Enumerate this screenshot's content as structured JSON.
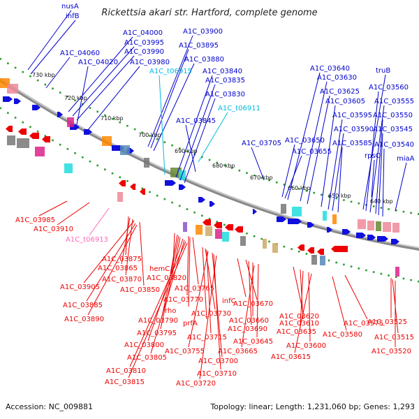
{
  "title": "Rickettsia akari str. Hartford, complete genome",
  "footer": {
    "accession": "Accession: NC_009881",
    "summary": "Topology: linear; Length: 1,231,060 bp; Genes: 1,293"
  },
  "colors": {
    "top_label": "#0000cc",
    "trna_label": "#00bbdd",
    "bottom_label": "#ee0000",
    "pink_label": "#ff66bb",
    "backbone": "#8a8a8a"
  },
  "scale_ticks": [
    "730 kbp",
    "720 kbp",
    "710 kbp",
    "700 kbp",
    "690 kbp",
    "680 kbp",
    "670 kbp",
    "660 kbp",
    "650 kbp",
    "640 kbp"
  ],
  "top_labels": [
    {
      "text": "nusA",
      "kind": "gene"
    },
    {
      "text": "infB",
      "kind": "gene"
    },
    {
      "text": "A1C_04060",
      "kind": "gene"
    },
    {
      "text": "A1C_04000",
      "kind": "gene"
    },
    {
      "text": "A1C_03995",
      "kind": "gene"
    },
    {
      "text": "A1C_03990",
      "kind": "gene"
    },
    {
      "text": "A1C_04020",
      "kind": "gene"
    },
    {
      "text": "A1C_03980",
      "kind": "gene"
    },
    {
      "text": "A1C_03900",
      "kind": "gene"
    },
    {
      "text": "A1C_03895",
      "kind": "gene"
    },
    {
      "text": "A1C_03880",
      "kind": "gene"
    },
    {
      "text": "A1C_t06915",
      "kind": "trna"
    },
    {
      "text": "A1C_03840",
      "kind": "gene"
    },
    {
      "text": "A1C_03835",
      "kind": "gene"
    },
    {
      "text": "A1C_03830",
      "kind": "gene"
    },
    {
      "text": "A1C_t06911",
      "kind": "trna"
    },
    {
      "text": "A1C_03845",
      "kind": "gene"
    },
    {
      "text": "A1C_03705",
      "kind": "gene"
    },
    {
      "text": "A1C_03650",
      "kind": "gene"
    },
    {
      "text": "A1C_03655",
      "kind": "gene"
    },
    {
      "text": "A1C_03640",
      "kind": "gene"
    },
    {
      "text": "A1C_03630",
      "kind": "gene"
    },
    {
      "text": "A1C_03625",
      "kind": "gene"
    },
    {
      "text": "A1C_03605",
      "kind": "gene"
    },
    {
      "text": "A1C_03595",
      "kind": "gene"
    },
    {
      "text": "A1C_03590",
      "kind": "gene"
    },
    {
      "text": "A1C_03585",
      "kind": "gene"
    },
    {
      "text": "truB",
      "kind": "gene"
    },
    {
      "text": "A1C_03560",
      "kind": "gene"
    },
    {
      "text": "A1C_03555",
      "kind": "gene"
    },
    {
      "text": "A1C_03550",
      "kind": "gene"
    },
    {
      "text": "A1C_03545",
      "kind": "gene"
    },
    {
      "text": "A1C_03540",
      "kind": "gene"
    },
    {
      "text": "rpsO",
      "kind": "gene"
    },
    {
      "text": "miaA",
      "kind": "gene"
    }
  ],
  "bottom_labels": [
    {
      "text": "A1C_03985",
      "kind": "gene"
    },
    {
      "text": "A1C_03910",
      "kind": "gene"
    },
    {
      "text": "A1C_t06913",
      "kind": "trna"
    },
    {
      "text": "A1C_03875",
      "kind": "gene"
    },
    {
      "text": "A1C_03865",
      "kind": "gene"
    },
    {
      "text": "A1C_03870",
      "kind": "gene"
    },
    {
      "text": "A1C_03905",
      "kind": "gene"
    },
    {
      "text": "A1C_03850",
      "kind": "gene"
    },
    {
      "text": "A1C_03885",
      "kind": "gene"
    },
    {
      "text": "A1C_03890",
      "kind": "gene"
    },
    {
      "text": "hemC",
      "kind": "gene"
    },
    {
      "text": "A1C_03820",
      "kind": "gene"
    },
    {
      "text": "A1C_03765",
      "kind": "gene"
    },
    {
      "text": "A1C_03770",
      "kind": "gene"
    },
    {
      "text": "rho",
      "kind": "gene"
    },
    {
      "text": "A1C_03790",
      "kind": "gene"
    },
    {
      "text": "A1C_03795",
      "kind": "gene"
    },
    {
      "text": "A1C_03800",
      "kind": "gene"
    },
    {
      "text": "A1C_03805",
      "kind": "gene"
    },
    {
      "text": "A1C_03810",
      "kind": "gene"
    },
    {
      "text": "A1C_03815",
      "kind": "gene"
    },
    {
      "text": "prfA",
      "kind": "gene"
    },
    {
      "text": "A1C_03730",
      "kind": "gene"
    },
    {
      "text": "A1C_03715",
      "kind": "gene"
    },
    {
      "text": "A1C_03755",
      "kind": "gene"
    },
    {
      "text": "A1C_03700",
      "kind": "gene"
    },
    {
      "text": "A1C_03710",
      "kind": "gene"
    },
    {
      "text": "A1C_03720",
      "kind": "gene"
    },
    {
      "text": "infC",
      "kind": "gene"
    },
    {
      "text": "A1C_03670",
      "kind": "gene"
    },
    {
      "text": "A1C_03690",
      "kind": "gene"
    },
    {
      "text": "A1C_03660",
      "kind": "gene"
    },
    {
      "text": "A1C_03645",
      "kind": "gene"
    },
    {
      "text": "A1C_03665",
      "kind": "gene"
    },
    {
      "text": "A1C_03620",
      "kind": "gene"
    },
    {
      "text": "A1C_03610",
      "kind": "gene"
    },
    {
      "text": "A1C_03635",
      "kind": "gene"
    },
    {
      "text": "A1C_03600",
      "kind": "gene"
    },
    {
      "text": "A1C_03615",
      "kind": "gene"
    },
    {
      "text": "A1C_03575",
      "kind": "gene"
    },
    {
      "text": "A1C_03580",
      "kind": "gene"
    },
    {
      "text": "A1C_03525",
      "kind": "gene"
    },
    {
      "text": "A1C_03515",
      "kind": "gene"
    },
    {
      "text": "A1C_03520",
      "kind": "gene"
    }
  ]
}
